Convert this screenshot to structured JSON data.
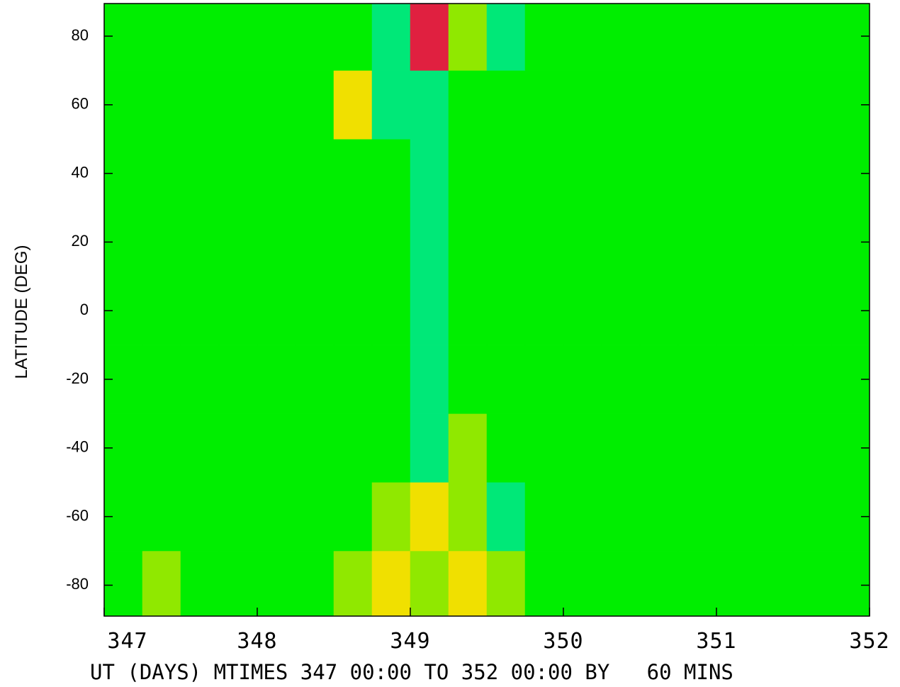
{
  "chart_data": {
    "type": "contour",
    "x_label": "UT (DAYS) MTIMES 347 00:00 TO 352 00:00 BY   60 MINS",
    "y_label": "LATITUDE (DEG)",
    "xlim": [
      347,
      352
    ],
    "xticks": [
      347,
      348,
      349,
      350,
      351,
      352
    ],
    "ylim": [
      -89,
      89.5
    ],
    "yticks": [
      -80,
      -60,
      -40,
      -20,
      0,
      20,
      40,
      60,
      80
    ],
    "x": [
      347.125,
      347.375,
      347.625,
      347.875,
      348.125,
      348.375,
      348.625,
      348.875,
      349.125,
      349.375,
      349.625,
      349.875,
      350.125,
      350.375,
      350.625,
      350.875,
      351.125,
      351.375,
      351.625,
      351.875
    ],
    "y": [
      -80,
      -60,
      -40,
      -20,
      0,
      20,
      40,
      60,
      80
    ],
    "z": [
      [
        0,
        1,
        0,
        0,
        0,
        0,
        1,
        2,
        1,
        2,
        1,
        0,
        0,
        0,
        0,
        0,
        0,
        0,
        0,
        0
      ],
      [
        0,
        0,
        0,
        0,
        0,
        0,
        0,
        1,
        2,
        1,
        -1,
        0,
        0,
        0,
        0,
        0,
        0,
        0,
        0,
        0
      ],
      [
        0,
        0,
        0,
        0,
        0,
        0,
        0,
        0,
        -1,
        1,
        0,
        0,
        0,
        0,
        0,
        0,
        0,
        0,
        0,
        0
      ],
      [
        0,
        0,
        0,
        0,
        0,
        0,
        0,
        0,
        -1,
        0,
        0,
        0,
        0,
        0,
        0,
        0,
        0,
        0,
        0,
        0
      ],
      [
        0,
        0,
        0,
        0,
        0,
        0,
        0,
        0,
        -1,
        0,
        0,
        0,
        0,
        0,
        0,
        0,
        0,
        0,
        0,
        0
      ],
      [
        0,
        0,
        0,
        0,
        0,
        0,
        0,
        0,
        -1,
        0,
        0,
        0,
        0,
        0,
        0,
        0,
        0,
        0,
        0,
        0
      ],
      [
        0,
        0,
        0,
        0,
        0,
        0,
        0,
        0,
        -1,
        0,
        0,
        0,
        0,
        0,
        0,
        0,
        0,
        0,
        0,
        0
      ],
      [
        0,
        0,
        0,
        0,
        0,
        0,
        2,
        -1,
        -1,
        0,
        0,
        0,
        0,
        0,
        0,
        0,
        0,
        0,
        0,
        0
      ],
      [
        0,
        0,
        0,
        0,
        0,
        0,
        0,
        -1,
        3,
        1,
        -1,
        0,
        0,
        0,
        0,
        0,
        0,
        0,
        0,
        0
      ]
    ],
    "levels": [
      -2,
      -1,
      0,
      1,
      2,
      3
    ],
    "colors": [
      "#00b0ff",
      "#00e878",
      "#00ee00",
      "#90e800",
      "#f0e000",
      "#e02040"
    ]
  }
}
